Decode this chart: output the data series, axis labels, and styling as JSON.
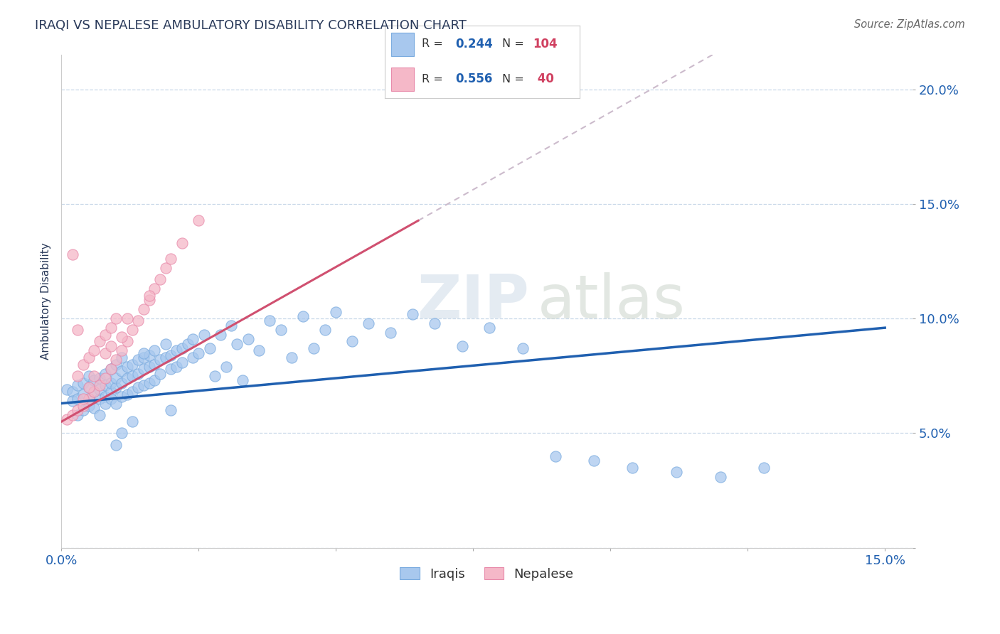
{
  "title": "IRAQI VS NEPALESE AMBULATORY DISABILITY CORRELATION CHART",
  "source": "Source: ZipAtlas.com",
  "ylabel": "Ambulatory Disability",
  "xlim": [
    0.0,
    0.155
  ],
  "ylim": [
    0.0,
    0.215
  ],
  "yticks": [
    0.0,
    0.05,
    0.1,
    0.15,
    0.2
  ],
  "iraqis_color": "#a8c8ee",
  "iraqis_edge_color": "#7aabdf",
  "nepalese_color": "#f5b8c8",
  "nepalese_edge_color": "#e88aaa",
  "trendline_iraqis_color": "#2060b0",
  "trendline_nepalese_color": "#d05070",
  "trendline_extend_color": "#ccbbcc",
  "background_color": "#ffffff",
  "grid_color": "#c8d8e8",
  "title_color": "#2a3a5a",
  "r_value_color": "#2060b0",
  "n_value_color": "#d04060",
  "marker_size": 120,
  "iraqi_intercept": 0.063,
  "iraqi_slope": 0.22,
  "nepalese_intercept": 0.055,
  "nepalese_slope": 1.35,
  "iraqi_x_data": [
    0.001,
    0.002,
    0.002,
    0.003,
    0.003,
    0.003,
    0.004,
    0.004,
    0.004,
    0.005,
    0.005,
    0.005,
    0.005,
    0.006,
    0.006,
    0.006,
    0.007,
    0.007,
    0.007,
    0.007,
    0.008,
    0.008,
    0.008,
    0.008,
    0.009,
    0.009,
    0.009,
    0.009,
    0.01,
    0.01,
    0.01,
    0.01,
    0.011,
    0.011,
    0.011,
    0.011,
    0.012,
    0.012,
    0.012,
    0.013,
    0.013,
    0.013,
    0.014,
    0.014,
    0.014,
    0.015,
    0.015,
    0.015,
    0.016,
    0.016,
    0.016,
    0.017,
    0.017,
    0.017,
    0.018,
    0.018,
    0.019,
    0.019,
    0.02,
    0.02,
    0.021,
    0.021,
    0.022,
    0.022,
    0.023,
    0.024,
    0.024,
    0.025,
    0.026,
    0.027,
    0.028,
    0.029,
    0.03,
    0.031,
    0.032,
    0.033,
    0.034,
    0.036,
    0.038,
    0.04,
    0.042,
    0.044,
    0.046,
    0.048,
    0.05,
    0.053,
    0.056,
    0.06,
    0.064,
    0.068,
    0.073,
    0.078,
    0.084,
    0.09,
    0.097,
    0.104,
    0.112,
    0.12,
    0.128,
    0.011,
    0.01,
    0.013,
    0.015,
    0.02
  ],
  "iraqi_y_data": [
    0.069,
    0.068,
    0.064,
    0.065,
    0.071,
    0.058,
    0.067,
    0.072,
    0.06,
    0.065,
    0.07,
    0.062,
    0.075,
    0.068,
    0.073,
    0.061,
    0.065,
    0.069,
    0.074,
    0.058,
    0.071,
    0.066,
    0.076,
    0.063,
    0.068,
    0.072,
    0.078,
    0.065,
    0.07,
    0.074,
    0.08,
    0.063,
    0.072,
    0.077,
    0.083,
    0.066,
    0.074,
    0.079,
    0.067,
    0.075,
    0.08,
    0.068,
    0.076,
    0.082,
    0.07,
    0.078,
    0.083,
    0.071,
    0.079,
    0.084,
    0.072,
    0.08,
    0.086,
    0.073,
    0.082,
    0.076,
    0.083,
    0.089,
    0.084,
    0.078,
    0.086,
    0.079,
    0.087,
    0.081,
    0.089,
    0.083,
    0.091,
    0.085,
    0.093,
    0.087,
    0.075,
    0.093,
    0.079,
    0.097,
    0.089,
    0.073,
    0.091,
    0.086,
    0.099,
    0.095,
    0.083,
    0.101,
    0.087,
    0.095,
    0.103,
    0.09,
    0.098,
    0.094,
    0.102,
    0.098,
    0.088,
    0.096,
    0.087,
    0.04,
    0.038,
    0.035,
    0.033,
    0.031,
    0.035,
    0.05,
    0.045,
    0.055,
    0.085,
    0.06
  ],
  "nepalese_x_data": [
    0.001,
    0.002,
    0.003,
    0.003,
    0.004,
    0.004,
    0.005,
    0.005,
    0.006,
    0.006,
    0.007,
    0.007,
    0.008,
    0.008,
    0.009,
    0.009,
    0.01,
    0.01,
    0.011,
    0.012,
    0.013,
    0.014,
    0.015,
    0.016,
    0.017,
    0.018,
    0.019,
    0.02,
    0.022,
    0.025,
    0.002,
    0.003,
    0.005,
    0.008,
    0.012,
    0.004,
    0.006,
    0.009,
    0.011,
    0.016
  ],
  "nepalese_y_data": [
    0.056,
    0.058,
    0.06,
    0.075,
    0.062,
    0.08,
    0.065,
    0.083,
    0.068,
    0.086,
    0.071,
    0.09,
    0.074,
    0.093,
    0.078,
    0.096,
    0.082,
    0.1,
    0.086,
    0.09,
    0.095,
    0.099,
    0.104,
    0.108,
    0.113,
    0.117,
    0.122,
    0.126,
    0.133,
    0.143,
    0.128,
    0.095,
    0.07,
    0.085,
    0.1,
    0.065,
    0.075,
    0.088,
    0.092,
    0.11
  ]
}
